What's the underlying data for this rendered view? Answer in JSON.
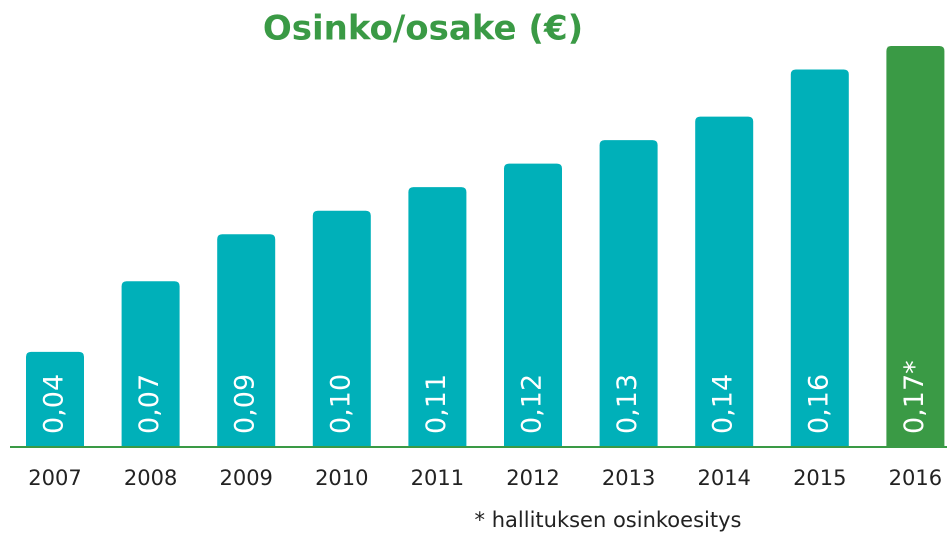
{
  "chart_data": {
    "type": "bar",
    "title": "Osinko/osake (€)",
    "categories": [
      "2007",
      "2008",
      "2009",
      "2010",
      "2011",
      "2012",
      "2013",
      "2014",
      "2015",
      "2016"
    ],
    "values": [
      0.04,
      0.07,
      0.09,
      0.1,
      0.11,
      0.12,
      0.13,
      0.14,
      0.16,
      0.17
    ],
    "value_labels": [
      "0,04",
      "0,07",
      "0,09",
      "0,10",
      "0,11",
      "0,12",
      "0,13",
      "0,14",
      "0,16",
      "0,17*"
    ],
    "colors": [
      "#00b0b9",
      "#00b0b9",
      "#00b0b9",
      "#00b0b9",
      "#00b0b9",
      "#00b0b9",
      "#00b0b9",
      "#00b0b9",
      "#00b0b9",
      "#3a9a45"
    ],
    "footnote": "* hallituksen osinkoesitys"
  }
}
